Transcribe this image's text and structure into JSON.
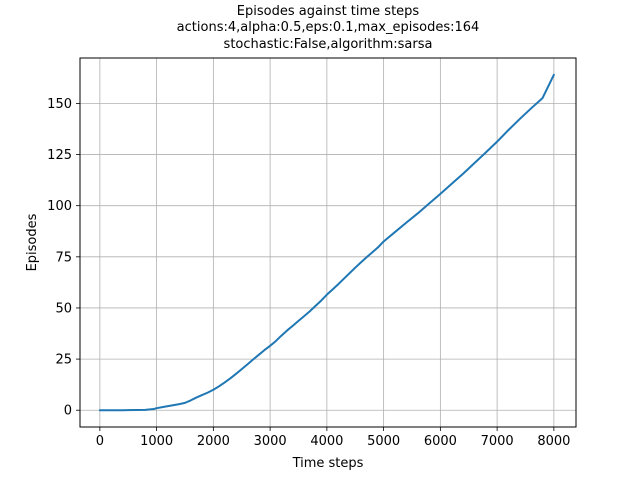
{
  "chart_data": {
    "type": "line",
    "title_lines": [
      "Episodes against time steps",
      "actions:4,alpha:0.5,eps:0.1,max_episodes:164",
      "stochastic:False,algorithm:sarsa"
    ],
    "xlabel": "Time steps",
    "ylabel": "Episodes",
    "xlim": [
      -350,
      8390
    ],
    "ylim": [
      -8.2,
      172.2
    ],
    "xticks": [
      0,
      1000,
      2000,
      3000,
      4000,
      5000,
      6000,
      7000,
      8000
    ],
    "yticks": [
      0,
      25,
      50,
      75,
      100,
      125,
      150
    ],
    "grid": true,
    "line_color": "#1f77b4",
    "grid_color": "#b0b0b0",
    "series": [
      {
        "x": [
          0,
          400,
          800,
          950,
          1000,
          1100,
          1200,
          1300,
          1400,
          1500,
          1600,
          1700,
          1800,
          1900,
          2000,
          2100,
          2200,
          2300,
          2400,
          2500,
          2600,
          2700,
          2800,
          2900,
          3000,
          3100,
          3200,
          3300,
          3400,
          3500,
          3600,
          3700,
          3800,
          3900,
          4000,
          4100,
          4200,
          4300,
          4400,
          4500,
          4600,
          4700,
          4800,
          4900,
          5000,
          5200,
          5400,
          5600,
          5800,
          6000,
          6200,
          6400,
          6600,
          6800,
          7000,
          7200,
          7400,
          7600,
          7800,
          8000
        ],
        "y": [
          0,
          0,
          0.2,
          0.6,
          1.0,
          1.5,
          2.0,
          2.5,
          3.0,
          3.6,
          4.8,
          6.2,
          7.4,
          8.6,
          10.0,
          11.7,
          13.6,
          15.6,
          17.8,
          20.1,
          22.4,
          24.8,
          27.1,
          29.4,
          31.5,
          33.8,
          36.5,
          39.0,
          41.3,
          43.7,
          46.0,
          48.4,
          51.0,
          53.6,
          56.5,
          59.0,
          61.6,
          64.3,
          67.0,
          69.7,
          72.3,
          74.8,
          77.2,
          79.6,
          82.5,
          87.1,
          91.7,
          96.2,
          101.0,
          105.8,
          110.7,
          115.6,
          120.8,
          126.0,
          131.3,
          137.0,
          142.4,
          147.6,
          152.6,
          164.0
        ]
      }
    ]
  }
}
